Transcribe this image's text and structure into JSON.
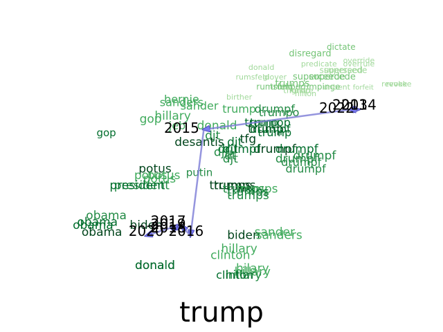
{
  "chart_data": {
    "type": "scatter",
    "title": "trump",
    "xlabel": "",
    "ylabel": "",
    "axes_visible": false,
    "grid": false,
    "colors": {
      "words_by_age": [
        "#e5f5e0",
        "#c7e9c0",
        "#a1d99b",
        "#74c476",
        "#41ab5d",
        "#238b45",
        "#006d2c",
        "#00441b"
      ],
      "trajectory_line": "#7b7bd6",
      "trajectory_arrow": "#7b7bf0",
      "year_label": "#000000"
    },
    "trajectory": [
      {
        "year": "2013",
        "x": 0.8,
        "y": 0.33
      },
      {
        "year": "2014",
        "x": 0.81,
        "y": 0.33
      },
      {
        "year": "2015",
        "x": 0.46,
        "y": 0.39
      },
      {
        "year": "2016",
        "x": 0.43,
        "y": 0.71
      },
      {
        "year": "2017",
        "x": 0.41,
        "y": 0.68
      },
      {
        "year": "2018",
        "x": 0.39,
        "y": 0.69
      },
      {
        "year": "2019",
        "x": 0.4,
        "y": 0.68
      },
      {
        "year": "2020",
        "x": 0.33,
        "y": 0.71
      },
      {
        "year": "2022",
        "x": 0.79,
        "y": 0.33
      }
    ],
    "year_labels": [
      {
        "text": "2013",
        "x": 0.79,
        "y": 0.33
      },
      {
        "text": "2014",
        "x": 0.81,
        "y": 0.33
      },
      {
        "text": "2022",
        "x": 0.76,
        "y": 0.34
      },
      {
        "text": "2015",
        "x": 0.41,
        "y": 0.4
      },
      {
        "text": "2017",
        "x": 0.38,
        "y": 0.68
      },
      {
        "text": "2019",
        "x": 0.38,
        "y": 0.69
      },
      {
        "text": "2018",
        "x": 0.38,
        "y": 0.7
      },
      {
        "text": "2020",
        "x": 0.33,
        "y": 0.71
      },
      {
        "text": "2016",
        "x": 0.42,
        "y": 0.71
      }
    ],
    "words": [
      {
        "text": "dictate",
        "x": 0.77,
        "y": 0.15,
        "size": 12,
        "age": 3
      },
      {
        "text": "disregard",
        "x": 0.7,
        "y": 0.17,
        "size": 13,
        "age": 3
      },
      {
        "text": "donald",
        "x": 0.59,
        "y": 0.21,
        "size": 11,
        "age": 2
      },
      {
        "text": "predicate",
        "x": 0.72,
        "y": 0.2,
        "size": 11,
        "age": 2
      },
      {
        "text": "overrule",
        "x": 0.81,
        "y": 0.2,
        "size": 11,
        "age": 2
      },
      {
        "text": "override",
        "x": 0.81,
        "y": 0.19,
        "size": 11,
        "age": 2
      },
      {
        "text": "supersede",
        "x": 0.78,
        "y": 0.22,
        "size": 12,
        "age": 2
      },
      {
        "text": "superseed",
        "x": 0.77,
        "y": 0.22,
        "size": 12,
        "age": 2
      },
      {
        "text": "superceede",
        "x": 0.72,
        "y": 0.24,
        "size": 13,
        "age": 3
      },
      {
        "text": "supercede",
        "x": 0.75,
        "y": 0.24,
        "size": 13,
        "age": 3
      },
      {
        "text": "rumsfeld",
        "x": 0.57,
        "y": 0.24,
        "size": 11,
        "age": 2
      },
      {
        "text": "glover",
        "x": 0.62,
        "y": 0.24,
        "size": 11,
        "age": 2
      },
      {
        "text": "trumps",
        "x": 0.66,
        "y": 0.26,
        "size": 14,
        "age": 3
      },
      {
        "text": "rumsfeld",
        "x": 0.62,
        "y": 0.27,
        "size": 12,
        "age": 3
      },
      {
        "text": "trumped",
        "x": 0.65,
        "y": 0.27,
        "size": 12,
        "age": 3
      },
      {
        "text": "impinge",
        "x": 0.73,
        "y": 0.27,
        "size": 12,
        "age": 3
      },
      {
        "text": "forfeit",
        "x": 0.82,
        "y": 0.27,
        "size": 10,
        "age": 2
      },
      {
        "text": "revoke",
        "x": 0.89,
        "y": 0.26,
        "size": 11,
        "age": 2
      },
      {
        "text": "revoke",
        "x": 0.9,
        "y": 0.26,
        "size": 11,
        "age": 2
      },
      {
        "text": "thump",
        "x": 0.67,
        "y": 0.28,
        "size": 12,
        "age": 2
      },
      {
        "text": "unbent",
        "x": 0.76,
        "y": 0.27,
        "size": 11,
        "age": 2
      },
      {
        "text": "ignore",
        "x": 0.68,
        "y": 0.28,
        "size": 11,
        "age": 2
      },
      {
        "text": "hilton",
        "x": 0.69,
        "y": 0.29,
        "size": 11,
        "age": 2
      },
      {
        "text": "birther",
        "x": 0.54,
        "y": 0.3,
        "size": 11,
        "age": 2
      },
      {
        "text": "sanders",
        "x": 0.41,
        "y": 0.32,
        "size": 16,
        "age": 4
      },
      {
        "text": "bernie",
        "x": 0.41,
        "y": 0.31,
        "size": 16,
        "age": 4
      },
      {
        "text": "sander",
        "x": 0.45,
        "y": 0.33,
        "size": 16,
        "age": 4
      },
      {
        "text": "trump",
        "x": 0.54,
        "y": 0.34,
        "size": 16,
        "age": 4
      },
      {
        "text": "drumpf",
        "x": 0.62,
        "y": 0.34,
        "size": 16,
        "age": 5
      },
      {
        "text": "trumpo",
        "x": 0.63,
        "y": 0.35,
        "size": 16,
        "age": 5
      },
      {
        "text": "hillary",
        "x": 0.39,
        "y": 0.36,
        "size": 17,
        "age": 4
      },
      {
        "text": "gop",
        "x": 0.34,
        "y": 0.37,
        "size": 17,
        "age": 4
      },
      {
        "text": "trump",
        "x": 0.59,
        "y": 0.38,
        "size": 16,
        "age": 6
      },
      {
        "text": "trumpp",
        "x": 0.61,
        "y": 0.38,
        "size": 16,
        "age": 6
      },
      {
        "text": "jeb",
        "x": 0.4,
        "y": 0.39,
        "size": 16,
        "age": 4
      },
      {
        "text": "donald",
        "x": 0.49,
        "y": 0.39,
        "size": 17,
        "age": 4
      },
      {
        "text": "trump",
        "x": 0.6,
        "y": 0.4,
        "size": 17,
        "age": 7
      },
      {
        "text": "gop",
        "x": 0.24,
        "y": 0.41,
        "size": 15,
        "age": 6
      },
      {
        "text": "drumpf",
        "x": 0.61,
        "y": 0.4,
        "size": 16,
        "age": 6
      },
      {
        "text": "trump",
        "x": 0.62,
        "y": 0.41,
        "size": 16,
        "age": 6
      },
      {
        "text": "djt",
        "x": 0.48,
        "y": 0.42,
        "size": 17,
        "age": 5
      },
      {
        "text": "tfg",
        "x": 0.56,
        "y": 0.43,
        "size": 17,
        "age": 7
      },
      {
        "text": "desantis",
        "x": 0.45,
        "y": 0.44,
        "size": 17,
        "age": 7
      },
      {
        "text": "djt",
        "x": 0.53,
        "y": 0.44,
        "size": 17,
        "age": 6
      },
      {
        "text": "drumpf",
        "x": 0.62,
        "y": 0.46,
        "size": 17,
        "age": 7
      },
      {
        "text": "drumpf",
        "x": 0.67,
        "y": 0.46,
        "size": 17,
        "age": 6
      },
      {
        "text": "djt",
        "x": 0.52,
        "y": 0.46,
        "size": 17,
        "age": 6
      },
      {
        "text": "drumpf",
        "x": 0.54,
        "y": 0.46,
        "size": 17,
        "age": 6
      },
      {
        "text": "djt",
        "x": 0.5,
        "y": 0.47,
        "size": 17,
        "age": 5
      },
      {
        "text": "dt",
        "x": 0.52,
        "y": 0.48,
        "size": 17,
        "age": 5
      },
      {
        "text": "djt",
        "x": 0.52,
        "y": 0.49,
        "size": 17,
        "age": 5
      },
      {
        "text": "drumpf",
        "x": 0.71,
        "y": 0.48,
        "size": 17,
        "age": 5
      },
      {
        "text": "drumpf",
        "x": 0.67,
        "y": 0.49,
        "size": 17,
        "age": 5
      },
      {
        "text": "drumpf",
        "x": 0.68,
        "y": 0.5,
        "size": 16,
        "age": 5
      },
      {
        "text": "drumpf",
        "x": 0.69,
        "y": 0.52,
        "size": 16,
        "age": 5
      },
      {
        "text": "potus",
        "x": 0.35,
        "y": 0.52,
        "size": 17,
        "age": 7
      },
      {
        "text": "putin",
        "x": 0.45,
        "y": 0.53,
        "size": 15,
        "age": 5
      },
      {
        "text": "potus",
        "x": 0.37,
        "y": 0.54,
        "size": 17,
        "age": 4
      },
      {
        "text": "potus",
        "x": 0.36,
        "y": 0.55,
        "size": 17,
        "age": 4
      },
      {
        "text": "potus",
        "x": 0.34,
        "y": 0.54,
        "size": 17,
        "age": 4
      },
      {
        "text": "president",
        "x": 0.32,
        "y": 0.57,
        "size": 17,
        "age": 5
      },
      {
        "text": "president",
        "x": 0.31,
        "y": 0.57,
        "size": 17,
        "age": 6
      },
      {
        "text": "trumps",
        "x": 0.53,
        "y": 0.57,
        "size": 17,
        "age": 7
      },
      {
        "text": "trumps",
        "x": 0.52,
        "y": 0.57,
        "size": 17,
        "age": 7
      },
      {
        "text": "trumps",
        "x": 0.55,
        "y": 0.58,
        "size": 17,
        "age": 5
      },
      {
        "text": "trumps",
        "x": 0.58,
        "y": 0.58,
        "size": 17,
        "age": 4
      },
      {
        "text": "trumps",
        "x": 0.56,
        "y": 0.59,
        "size": 17,
        "age": 6
      },
      {
        "text": "trumps",
        "x": 0.56,
        "y": 0.6,
        "size": 17,
        "age": 5
      },
      {
        "text": "obama",
        "x": 0.24,
        "y": 0.66,
        "size": 17,
        "age": 5
      },
      {
        "text": "obama",
        "x": 0.22,
        "y": 0.68,
        "size": 17,
        "age": 6
      },
      {
        "text": "obama",
        "x": 0.21,
        "y": 0.69,
        "size": 17,
        "age": 6
      },
      {
        "text": "biden",
        "x": 0.33,
        "y": 0.69,
        "size": 17,
        "age": 7
      },
      {
        "text": "obama",
        "x": 0.23,
        "y": 0.71,
        "size": 17,
        "age": 7
      },
      {
        "text": "biden",
        "x": 0.55,
        "y": 0.72,
        "size": 17,
        "age": 7
      },
      {
        "text": "sander",
        "x": 0.62,
        "y": 0.71,
        "size": 17,
        "age": 4
      },
      {
        "text": "sanders",
        "x": 0.63,
        "y": 0.72,
        "size": 17,
        "age": 4
      },
      {
        "text": "hillary",
        "x": 0.54,
        "y": 0.76,
        "size": 17,
        "age": 4
      },
      {
        "text": "clinton",
        "x": 0.52,
        "y": 0.78,
        "size": 17,
        "age": 4
      },
      {
        "text": "donald",
        "x": 0.35,
        "y": 0.81,
        "size": 17,
        "age": 7
      },
      {
        "text": "donald",
        "x": 0.35,
        "y": 0.81,
        "size": 17,
        "age": 6
      },
      {
        "text": "hilary",
        "x": 0.57,
        "y": 0.82,
        "size": 17,
        "age": 4
      },
      {
        "text": "hillary",
        "x": 0.57,
        "y": 0.83,
        "size": 17,
        "age": 4
      },
      {
        "text": "hillary",
        "x": 0.55,
        "y": 0.84,
        "size": 17,
        "age": 5
      },
      {
        "text": "clinton",
        "x": 0.53,
        "y": 0.84,
        "size": 16,
        "age": 6
      }
    ]
  }
}
